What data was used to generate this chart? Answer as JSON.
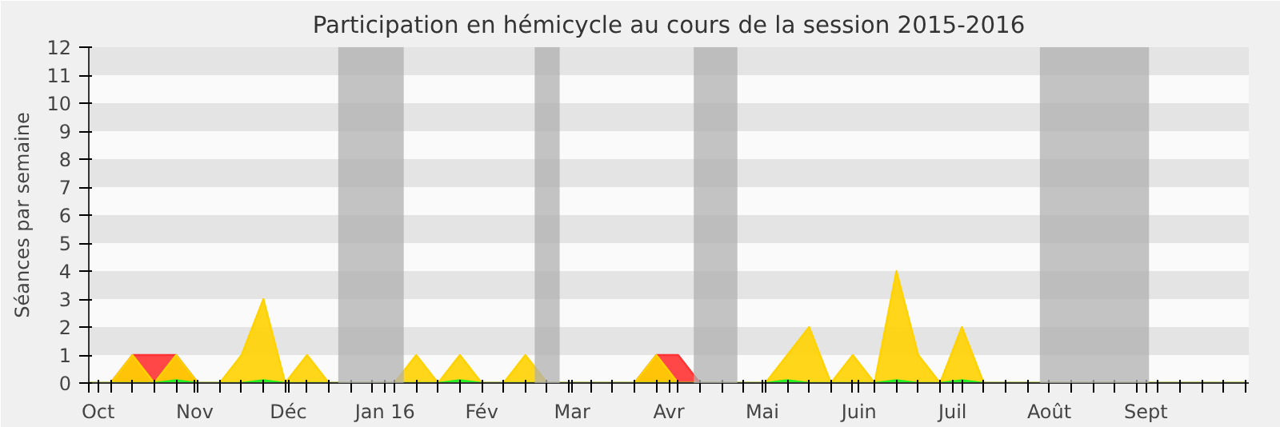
{
  "chart_data": {
    "type": "area",
    "title": "Participation en hémicycle au cours de la session 2015-2016",
    "ylabel": "Séances par semaine",
    "x": [
      "2015-09-28",
      "2015-10-05",
      "2015-10-12",
      "2015-10-19",
      "2015-10-26",
      "2015-11-02",
      "2015-11-09",
      "2015-11-16",
      "2015-11-23",
      "2015-11-30",
      "2015-12-07",
      "2015-12-14",
      "2015-12-21",
      "2015-12-28",
      "2016-01-04",
      "2016-01-11",
      "2016-01-18",
      "2016-01-25",
      "2016-02-01",
      "2016-02-08",
      "2016-02-15",
      "2016-02-22",
      "2016-02-29",
      "2016-03-07",
      "2016-03-14",
      "2016-03-21",
      "2016-03-28",
      "2016-04-04",
      "2016-04-11",
      "2016-04-18",
      "2016-04-25",
      "2016-05-02",
      "2016-05-09",
      "2016-05-16",
      "2016-05-23",
      "2016-05-30",
      "2016-06-06",
      "2016-06-13",
      "2016-06-20",
      "2016-06-27",
      "2016-07-04",
      "2016-07-11",
      "2016-07-18",
      "2016-07-25",
      "2016-08-01",
      "2016-08-08",
      "2016-08-15",
      "2016-08-22",
      "2016-08-29",
      "2016-09-05",
      "2016-09-12",
      "2016-09-19",
      "2016-09-26",
      "2016-10-03"
    ],
    "series": [
      {
        "color": "#ff3333",
        "values": [
          0,
          0,
          1,
          1,
          1,
          0,
          0,
          0,
          0,
          0,
          0,
          0,
          0,
          0,
          0,
          0,
          0,
          0,
          0,
          0,
          0,
          0,
          0,
          0,
          0,
          0,
          1,
          1,
          0,
          0,
          0,
          0,
          0,
          0,
          0,
          0,
          0,
          0,
          0,
          0,
          0,
          0,
          0,
          0,
          0,
          0,
          0,
          0,
          0,
          0,
          0,
          0,
          0,
          0
        ]
      },
      {
        "color": "#ffd200",
        "values": [
          0,
          0,
          1,
          0,
          1,
          0,
          0,
          1,
          3,
          0,
          1,
          0,
          0,
          0,
          0,
          1,
          0,
          1,
          0,
          0,
          1,
          0,
          0,
          0,
          0,
          0,
          1,
          0,
          0,
          0,
          0,
          0,
          1,
          2,
          0,
          1,
          0,
          4,
          1,
          0,
          2,
          0,
          0,
          0,
          0,
          0,
          0,
          0,
          0,
          0,
          0,
          0,
          0,
          0
        ]
      },
      {
        "color": "#22ee22",
        "values": [
          0,
          0,
          0,
          0,
          0.1,
          0,
          0,
          0,
          0.1,
          0,
          0,
          0,
          0,
          0,
          0,
          0,
          0,
          0.1,
          0,
          0,
          0,
          0,
          0,
          0,
          0,
          0,
          0,
          0,
          0,
          0,
          0,
          0,
          0.1,
          0,
          0,
          0,
          0,
          0.1,
          0,
          0,
          0.1,
          0,
          0,
          0,
          0,
          0,
          0,
          0,
          0,
          0,
          0,
          0,
          0,
          0
        ]
      }
    ],
    "xlim": [
      "2015-09-28",
      "2016-10-04"
    ],
    "ylim": [
      0,
      12
    ],
    "yticks": [
      0,
      1,
      2,
      3,
      4,
      5,
      6,
      7,
      8,
      9,
      10,
      11,
      12
    ],
    "xticks": [
      {
        "value": "2015-09-28",
        "label": null
      },
      {
        "value": "2015-10-01",
        "label": "Oct"
      },
      {
        "value": "2015-10-05",
        "label": null
      },
      {
        "value": "2015-10-12",
        "label": null
      },
      {
        "value": "2015-10-19",
        "label": null
      },
      {
        "value": "2015-10-26",
        "label": null
      },
      {
        "value": "2015-11-01",
        "label": "Nov"
      },
      {
        "value": "2015-11-02",
        "label": null
      },
      {
        "value": "2015-11-09",
        "label": null
      },
      {
        "value": "2015-11-16",
        "label": null
      },
      {
        "value": "2015-11-23",
        "label": null
      },
      {
        "value": "2015-11-30",
        "label": null
      },
      {
        "value": "2015-12-01",
        "label": "Déc"
      },
      {
        "value": "2015-12-07",
        "label": null
      },
      {
        "value": "2015-12-14",
        "label": null
      },
      {
        "value": "2015-12-21",
        "label": null
      },
      {
        "value": "2015-12-28",
        "label": null
      },
      {
        "value": "2016-01-01",
        "label": "Jan 16"
      },
      {
        "value": "2016-01-04",
        "label": null
      },
      {
        "value": "2016-01-11",
        "label": null
      },
      {
        "value": "2016-01-18",
        "label": null
      },
      {
        "value": "2016-01-25",
        "label": null
      },
      {
        "value": "2016-02-01",
        "label": "Fév"
      },
      {
        "value": "2016-02-08",
        "label": null
      },
      {
        "value": "2016-02-15",
        "label": null
      },
      {
        "value": "2016-02-22",
        "label": null
      },
      {
        "value": "2016-02-29",
        "label": null
      },
      {
        "value": "2016-03-01",
        "label": "Mar"
      },
      {
        "value": "2016-03-07",
        "label": null
      },
      {
        "value": "2016-03-14",
        "label": null
      },
      {
        "value": "2016-03-21",
        "label": null
      },
      {
        "value": "2016-03-28",
        "label": null
      },
      {
        "value": "2016-04-01",
        "label": "Avr"
      },
      {
        "value": "2016-04-04",
        "label": null
      },
      {
        "value": "2016-04-11",
        "label": null
      },
      {
        "value": "2016-04-18",
        "label": null
      },
      {
        "value": "2016-04-25",
        "label": null
      },
      {
        "value": "2016-05-01",
        "label": "Mai"
      },
      {
        "value": "2016-05-02",
        "label": null
      },
      {
        "value": "2016-05-09",
        "label": null
      },
      {
        "value": "2016-05-16",
        "label": null
      },
      {
        "value": "2016-05-23",
        "label": null
      },
      {
        "value": "2016-05-30",
        "label": null
      },
      {
        "value": "2016-06-01",
        "label": "Juin"
      },
      {
        "value": "2016-06-06",
        "label": null
      },
      {
        "value": "2016-06-13",
        "label": null
      },
      {
        "value": "2016-06-20",
        "label": null
      },
      {
        "value": "2016-06-27",
        "label": null
      },
      {
        "value": "2016-07-01",
        "label": "Juil"
      },
      {
        "value": "2016-07-04",
        "label": null
      },
      {
        "value": "2016-07-11",
        "label": null
      },
      {
        "value": "2016-07-18",
        "label": null
      },
      {
        "value": "2016-07-25",
        "label": null
      },
      {
        "value": "2016-08-01",
        "label": "Août"
      },
      {
        "value": "2016-08-08",
        "label": null
      },
      {
        "value": "2016-08-15",
        "label": null
      },
      {
        "value": "2016-08-22",
        "label": null
      },
      {
        "value": "2016-08-29",
        "label": null
      },
      {
        "value": "2016-09-01",
        "label": "Sept"
      },
      {
        "value": "2016-09-05",
        "label": null
      },
      {
        "value": "2016-09-12",
        "label": null
      },
      {
        "value": "2016-09-19",
        "label": null
      },
      {
        "value": "2016-09-26",
        "label": null
      },
      {
        "value": "2016-10-03",
        "label": null
      }
    ],
    "bands": [
      {
        "axis": "x",
        "from": "2015-12-17",
        "to": "2016-01-07",
        "color": "#b0b0b0"
      },
      {
        "axis": "x",
        "from": "2016-02-18",
        "to": "2016-02-26",
        "color": "#b0b0b0"
      },
      {
        "axis": "x",
        "from": "2016-04-09",
        "to": "2016-04-23",
        "color": "#b0b0b0"
      },
      {
        "axis": "x",
        "from": "2016-07-29",
        "to": "2016-09-02",
        "color": "#b0b0b0"
      }
    ]
  }
}
